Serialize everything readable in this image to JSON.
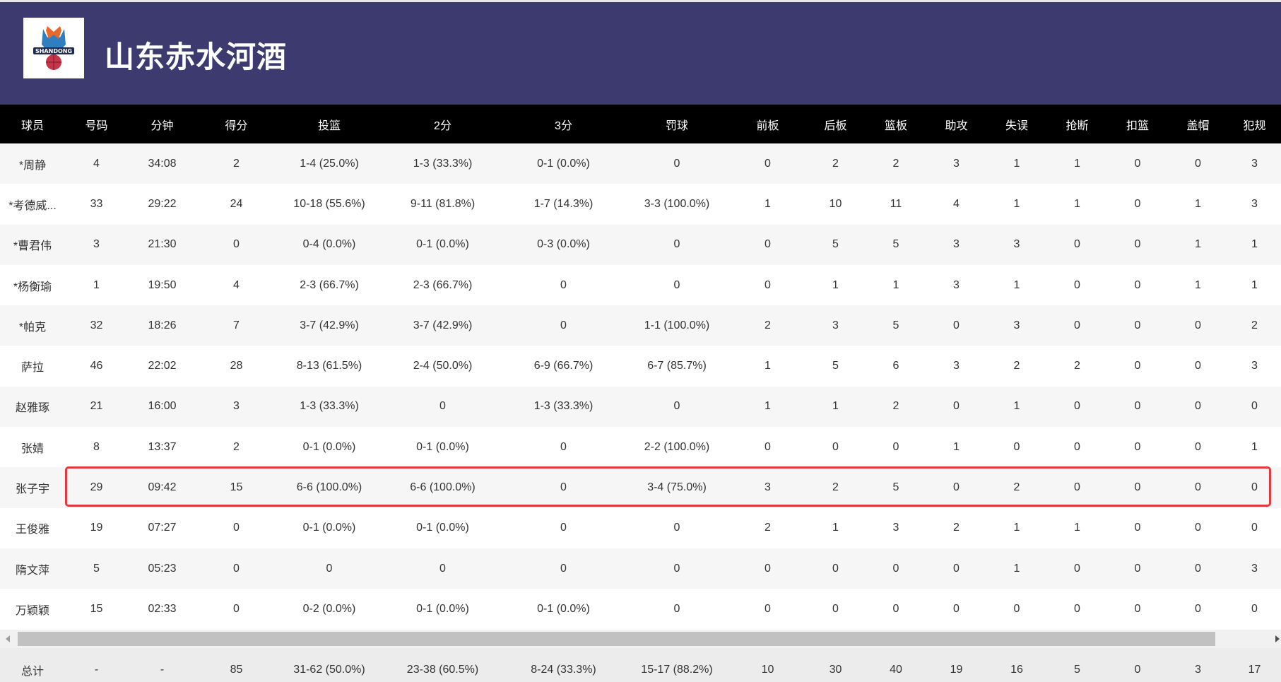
{
  "header": {
    "title": "山东赤水河酒",
    "logo_text": "SHANDONG 山东"
  },
  "columns": [
    "球员",
    "号码",
    "分钟",
    "得分",
    "投篮",
    "2分",
    "3分",
    "罚球",
    "前板",
    "后板",
    "篮板",
    "助攻",
    "失误",
    "抢断",
    "扣篮",
    "盖帽",
    "犯规"
  ],
  "rows": [
    [
      "*周静",
      "4",
      "34:08",
      "2",
      "1-4 (25.0%)",
      "1-3 (33.3%)",
      "0-1 (0.0%)",
      "0",
      "0",
      "2",
      "2",
      "3",
      "1",
      "1",
      "0",
      "0",
      "3"
    ],
    [
      "*考德威...",
      "33",
      "29:22",
      "24",
      "10-18 (55.6%)",
      "9-11 (81.8%)",
      "1-7 (14.3%)",
      "3-3 (100.0%)",
      "1",
      "10",
      "11",
      "4",
      "1",
      "1",
      "0",
      "1",
      "3"
    ],
    [
      "*曹君伟",
      "3",
      "21:30",
      "0",
      "0-4 (0.0%)",
      "0-1 (0.0%)",
      "0-3 (0.0%)",
      "0",
      "0",
      "5",
      "5",
      "3",
      "3",
      "0",
      "0",
      "1",
      "1"
    ],
    [
      "*杨衡瑜",
      "1",
      "19:50",
      "4",
      "2-3 (66.7%)",
      "2-3 (66.7%)",
      "0",
      "0",
      "0",
      "1",
      "1",
      "3",
      "1",
      "0",
      "0",
      "1",
      "1"
    ],
    [
      "*帕克",
      "32",
      "18:26",
      "7",
      "3-7 (42.9%)",
      "3-7 (42.9%)",
      "0",
      "1-1 (100.0%)",
      "2",
      "3",
      "5",
      "0",
      "3",
      "0",
      "0",
      "0",
      "2"
    ],
    [
      "萨拉",
      "46",
      "22:02",
      "28",
      "8-13 (61.5%)",
      "2-4 (50.0%)",
      "6-9 (66.7%)",
      "6-7 (85.7%)",
      "1",
      "5",
      "6",
      "3",
      "2",
      "2",
      "0",
      "0",
      "3"
    ],
    [
      "赵雅琢",
      "21",
      "16:00",
      "3",
      "1-3 (33.3%)",
      "0",
      "1-3 (33.3%)",
      "0",
      "1",
      "1",
      "2",
      "0",
      "1",
      "0",
      "0",
      "0",
      "0"
    ],
    [
      "张婧",
      "8",
      "13:37",
      "2",
      "0-1 (0.0%)",
      "0-1 (0.0%)",
      "0",
      "2-2 (100.0%)",
      "0",
      "0",
      "0",
      "1",
      "0",
      "0",
      "0",
      "0",
      "1"
    ],
    [
      "张子宇",
      "29",
      "09:42",
      "15",
      "6-6 (100.0%)",
      "6-6 (100.0%)",
      "0",
      "3-4 (75.0%)",
      "3",
      "2",
      "5",
      "0",
      "2",
      "0",
      "0",
      "0",
      "0"
    ],
    [
      "王俊雅",
      "19",
      "07:27",
      "0",
      "0-1 (0.0%)",
      "0-1 (0.0%)",
      "0",
      "0",
      "2",
      "1",
      "3",
      "2",
      "1",
      "1",
      "0",
      "0",
      "0"
    ],
    [
      "隋文萍",
      "5",
      "05:23",
      "0",
      "0",
      "0",
      "0",
      "0",
      "0",
      "0",
      "0",
      "0",
      "1",
      "0",
      "0",
      "0",
      "3"
    ],
    [
      "万颖颖",
      "15",
      "02:33",
      "0",
      "0-2 (0.0%)",
      "0-1 (0.0%)",
      "0-1 (0.0%)",
      "0",
      "0",
      "0",
      "0",
      "0",
      "0",
      "0",
      "0",
      "0",
      "0"
    ]
  ],
  "highlighted_player": "张子宇",
  "highlight_color": "#e0393e",
  "totals": [
    "总计",
    "-",
    "-",
    "85",
    "31-62 (50.0%)",
    "23-38 (60.5%)",
    "8-24 (33.3%)",
    "15-17 (88.2%)",
    "10",
    "30",
    "40",
    "19",
    "16",
    "5",
    "0",
    "3",
    "17"
  ]
}
